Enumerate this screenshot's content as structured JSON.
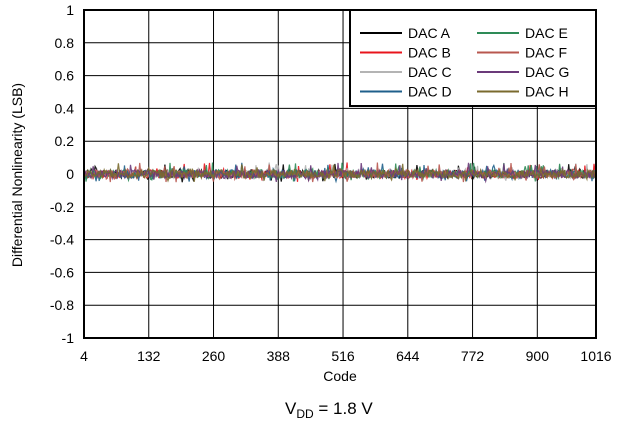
{
  "chart_data": {
    "type": "line",
    "title": "",
    "xlabel": "Code",
    "ylabel": "Differential Nonlinearity (LSB)",
    "xlim": [
      4,
      1016
    ],
    "ylim": [
      -1,
      1
    ],
    "xticks": [
      4,
      132,
      260,
      388,
      516,
      644,
      772,
      900,
      1016
    ],
    "xtick_labels": [
      "4",
      "132",
      "260",
      "388",
      "516",
      "644",
      "772",
      "900",
      "1016"
    ],
    "yticks": [
      -1,
      -0.8,
      -0.6,
      -0.4,
      -0.2,
      0,
      0.2,
      0.4,
      0.6,
      0.8,
      1
    ],
    "ytick_labels": [
      "-1",
      "-0.8",
      "-0.6",
      "-0.4",
      "-0.2",
      "0",
      "0.2",
      "0.4",
      "0.6",
      "0.8",
      "1"
    ],
    "grid": true,
    "legend_position": "top-right",
    "series": [
      {
        "name": "DAC A",
        "color": "#000000",
        "approx_range": [
          -0.05,
          0.07
        ]
      },
      {
        "name": "DAC B",
        "color": "#e8141c",
        "approx_range": [
          -0.05,
          0.07
        ]
      },
      {
        "name": "DAC C",
        "color": "#b4b4b4",
        "approx_range": [
          -0.05,
          0.07
        ]
      },
      {
        "name": "DAC D",
        "color": "#1f5f8b",
        "approx_range": [
          -0.05,
          0.07
        ]
      },
      {
        "name": "DAC E",
        "color": "#2e8b57",
        "approx_range": [
          -0.05,
          0.07
        ]
      },
      {
        "name": "DAC F",
        "color": "#b8574f",
        "approx_range": [
          -0.05,
          0.07
        ]
      },
      {
        "name": "DAC G",
        "color": "#6b3a7a",
        "approx_range": [
          -0.05,
          0.07
        ]
      },
      {
        "name": "DAC H",
        "color": "#7a6a2e",
        "approx_range": [
          -0.05,
          0.07
        ]
      }
    ],
    "caption_main": "V",
    "caption_sub": "DD",
    "caption_tail": " = 1.8 V"
  }
}
